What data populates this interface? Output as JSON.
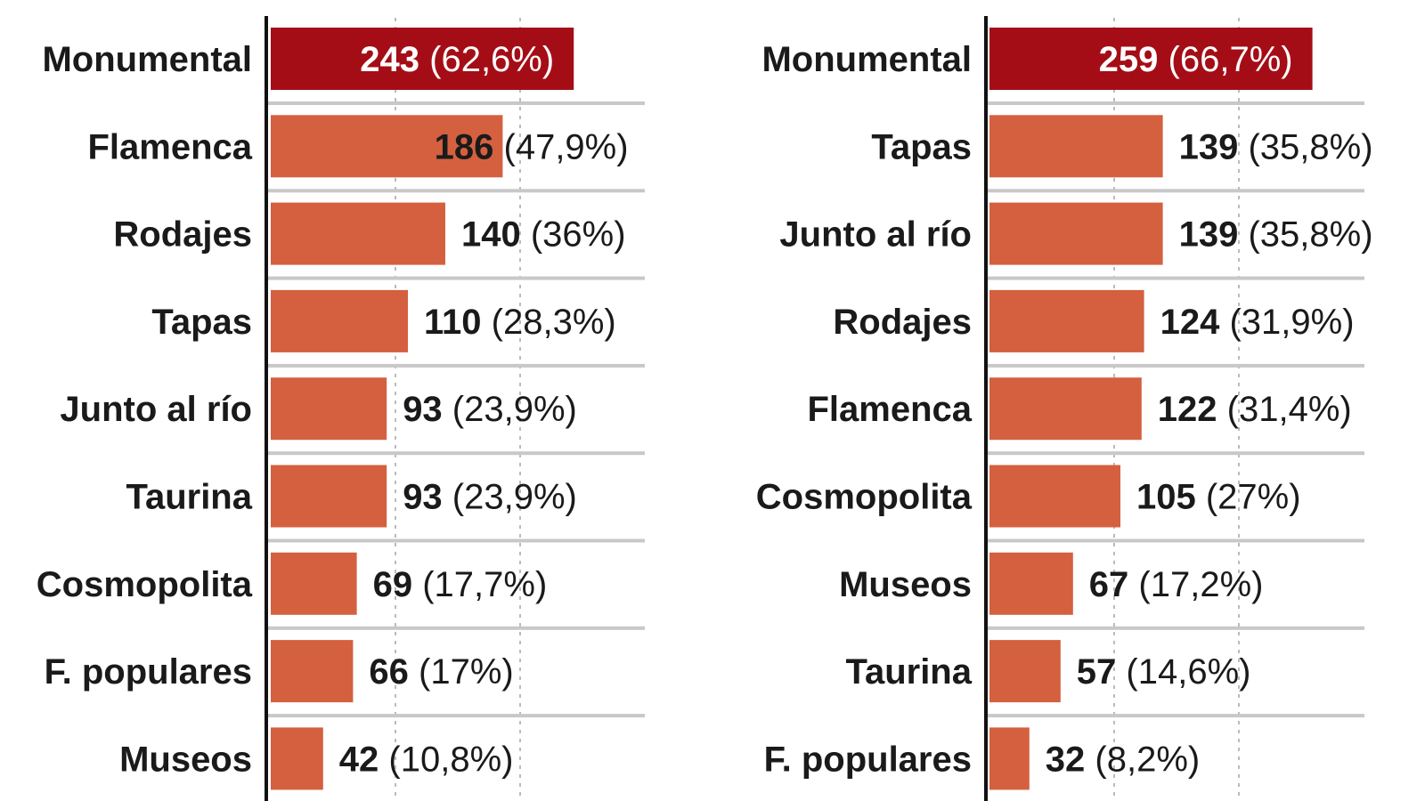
{
  "colors": {
    "highlight": "#a50d16",
    "bar": "#d4603f",
    "separator": "#c8c8c8",
    "grid": "#bbbbbb",
    "axis": "#111111"
  },
  "chart_data": [
    {
      "type": "bar",
      "orientation": "horizontal",
      "categories": [
        "Monumental",
        "Flamenca",
        "Rodajes",
        "Tapas",
        "Junto al río",
        "Taurina",
        "Cosmopolita",
        "F. populares",
        "Museos"
      ],
      "values": [
        243,
        186,
        140,
        110,
        93,
        93,
        69,
        66,
        42
      ],
      "labels": [
        "(62,6%)",
        "(47,9%)",
        "(36%)",
        "(28,3%)",
        "(23,9%)",
        "(23,9%)",
        "(17,7%)",
        "(17%)",
        "(10,8%)"
      ],
      "gridlines": [
        100,
        200
      ],
      "xlim": [
        0,
        300
      ]
    },
    {
      "type": "bar",
      "orientation": "horizontal",
      "categories": [
        "Monumental",
        "Tapas",
        "Junto al río",
        "Rodajes",
        "Flamenca",
        "Cosmopolita",
        "Museos",
        "Taurina",
        "F. populares"
      ],
      "values": [
        259,
        139,
        139,
        124,
        122,
        105,
        67,
        57,
        32
      ],
      "labels": [
        "(66,7%)",
        "(35,8%)",
        "(35,8%)",
        "(31,9%)",
        "(31,4%)",
        "(27%)",
        "(17,2%)",
        "(14,6%)",
        "(8,2%)"
      ],
      "gridlines": [
        100,
        200
      ],
      "xlim": [
        0,
        300
      ]
    }
  ]
}
